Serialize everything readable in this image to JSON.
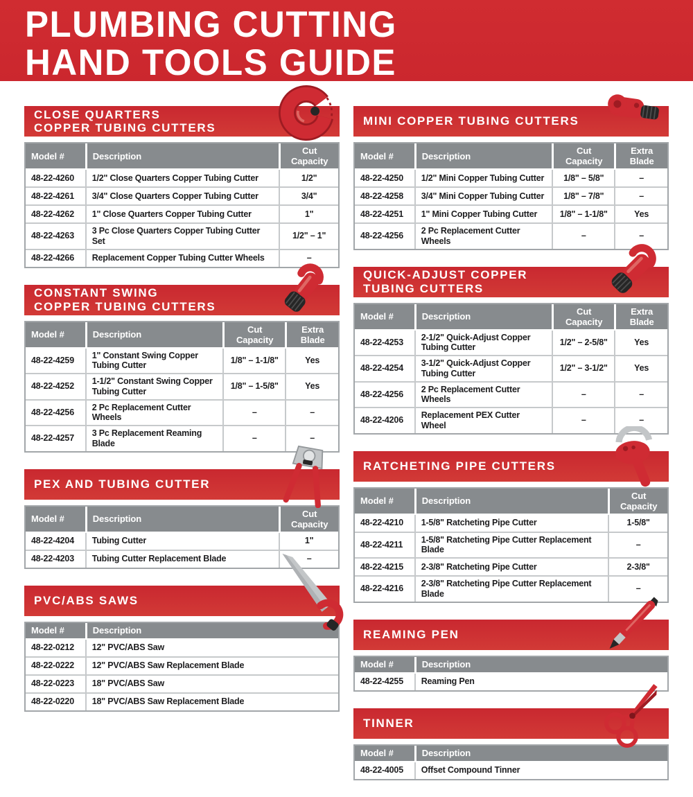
{
  "page_title": {
    "line1": "PLUMBING CUTTING",
    "line2": "HAND TOOLS GUIDE"
  },
  "colors": {
    "brand_red": "#ce2a31",
    "table_header_gray": "#878b8e",
    "table_line_gray": "#c6c9cb",
    "text_black": "#1d1d1f",
    "banner_text_white": "#ffffff"
  },
  "sections": {
    "left": [
      {
        "id": "close-quarters-copper-tubing-cutters",
        "title_lines": [
          "CLOSE QUARTERS",
          "COPPER TUBING CUTTERS"
        ],
        "icon": "close-quarters-cutter-icon",
        "columns": [
          "Model #",
          "Description",
          "Cut Capacity"
        ],
        "rows": [
          [
            "48-22-4260",
            "1/2\" Close Quarters Copper Tubing Cutter",
            "1/2\""
          ],
          [
            "48-22-4261",
            "3/4\" Close Quarters Copper Tubing Cutter",
            "3/4\""
          ],
          [
            "48-22-4262",
            "1\" Close Quarters Copper Tubing Cutter",
            "1\""
          ],
          [
            "48-22-4263",
            "3 Pc Close Quarters Copper Tubing Cutter Set",
            "1/2\" – 1\""
          ],
          [
            "48-22-4266",
            "Replacement Copper Tubing Cutter Wheels",
            "–"
          ]
        ]
      },
      {
        "id": "constant-swing-copper-tubing-cutters",
        "title_lines": [
          "CONSTANT SWING",
          "COPPER TUBING CUTTERS"
        ],
        "icon": "constant-swing-cutter-icon",
        "columns": [
          "Model #",
          "Description",
          "Cut Capacity",
          "Extra Blade"
        ],
        "rows": [
          [
            "48-22-4259",
            "1\" Constant Swing Copper Tubing Cutter",
            "1/8\" – 1-1/8\"",
            "Yes"
          ],
          [
            "48-22-4252",
            "1-1/2\" Constant Swing Copper Tubing Cutter",
            "1/8\" – 1-5/8\"",
            "Yes"
          ],
          [
            "48-22-4256",
            "2 Pc Replacement Cutter Wheels",
            "–",
            "–"
          ],
          [
            "48-22-4257",
            "3 Pc Replacement Reaming Blade",
            "–",
            "–"
          ]
        ]
      },
      {
        "id": "pex-and-tubing-cutter",
        "title_lines": [
          "PEX AND TUBING CUTTER"
        ],
        "icon": "pex-tubing-cutter-icon",
        "columns": [
          "Model #",
          "Description",
          "Cut Capacity"
        ],
        "rows": [
          [
            "48-22-4204",
            "Tubing Cutter",
            "1\""
          ],
          [
            "48-22-4203",
            "Tubing Cutter Replacement Blade",
            "–"
          ]
        ]
      },
      {
        "id": "pvc-abs-saws",
        "title_lines": [
          "PVC/ABS SAWS"
        ],
        "icon": "pvc-abs-saw-icon",
        "columns": [
          "Model #",
          "Description"
        ],
        "rows": [
          [
            "48-22-0212",
            "12\" PVC/ABS Saw"
          ],
          [
            "48-22-0222",
            "12\" PVC/ABS Saw Replacement Blade"
          ],
          [
            "48-22-0223",
            "18\" PVC/ABS Saw"
          ],
          [
            "48-22-0220",
            "18\" PVC/ABS Saw Replacement Blade"
          ]
        ]
      }
    ],
    "right": [
      {
        "id": "mini-copper-tubing-cutters",
        "title_lines": [
          "MINI COPPER TUBING CUTTERS"
        ],
        "icon": "mini-copper-cutter-icon",
        "columns": [
          "Model #",
          "Description",
          "Cut Capacity",
          "Extra Blade"
        ],
        "rows": [
          [
            "48-22-4250",
            "1/2\" Mini Copper Tubing Cutter",
            "1/8\" – 5/8\"",
            "–"
          ],
          [
            "48-22-4258",
            "3/4\" Mini Copper Tubing Cutter",
            "1/8\" – 7/8\"",
            "–"
          ],
          [
            "48-22-4251",
            "1\" Mini Copper Tubing Cutter",
            "1/8\" – 1-1/8\"",
            "Yes"
          ],
          [
            "48-22-4256",
            "2 Pc Replacement Cutter Wheels",
            "–",
            "–"
          ]
        ]
      },
      {
        "id": "quick-adjust-copper-tubing-cutters",
        "title_lines": [
          "QUICK-ADJUST COPPER",
          "TUBING CUTTERS"
        ],
        "icon": "quick-adjust-cutter-icon",
        "columns": [
          "Model #",
          "Description",
          "Cut Capacity",
          "Extra Blade"
        ],
        "rows": [
          [
            "48-22-4253",
            "2-1/2\" Quick-Adjust Copper Tubing Cutter",
            "1/2\" – 2-5/8\"",
            "Yes"
          ],
          [
            "48-22-4254",
            "3-1/2\" Quick-Adjust Copper Tubing Cutter",
            "1/2\" – 3-1/2\"",
            "Yes"
          ],
          [
            "48-22-4256",
            "2 Pc Replacement Cutter Wheels",
            "–",
            "–"
          ],
          [
            "48-22-4206",
            "Replacement PEX Cutter Wheel",
            "–",
            "–"
          ]
        ]
      },
      {
        "id": "ratcheting-pipe-cutters",
        "title_lines": [
          "RATCHETING PIPE CUTTERS"
        ],
        "icon": "ratcheting-pipe-cutter-icon",
        "columns": [
          "Model #",
          "Description",
          "Cut Capacity"
        ],
        "rows": [
          [
            "48-22-4210",
            "1-5/8\" Ratcheting Pipe Cutter",
            "1-5/8\""
          ],
          [
            "48-22-4211",
            "1-5/8\" Ratcheting Pipe Cutter Replacement Blade",
            "–"
          ],
          [
            "48-22-4215",
            "2-3/8\" Ratcheting Pipe Cutter",
            "2-3/8\""
          ],
          [
            "48-22-4216",
            "2-3/8\" Ratcheting Pipe Cutter Replacement Blade",
            "–"
          ]
        ]
      },
      {
        "id": "reaming-pen",
        "title_lines": [
          "REAMING PEN"
        ],
        "icon": "reaming-pen-icon",
        "columns": [
          "Model #",
          "Description"
        ],
        "rows": [
          [
            "48-22-4255",
            "Reaming Pen"
          ]
        ]
      },
      {
        "id": "tinner",
        "title_lines": [
          "TINNER"
        ],
        "icon": "tinner-snips-icon",
        "columns": [
          "Model #",
          "Description"
        ],
        "rows": [
          [
            "48-22-4005",
            "Offset Compound Tinner"
          ]
        ]
      }
    ]
  }
}
